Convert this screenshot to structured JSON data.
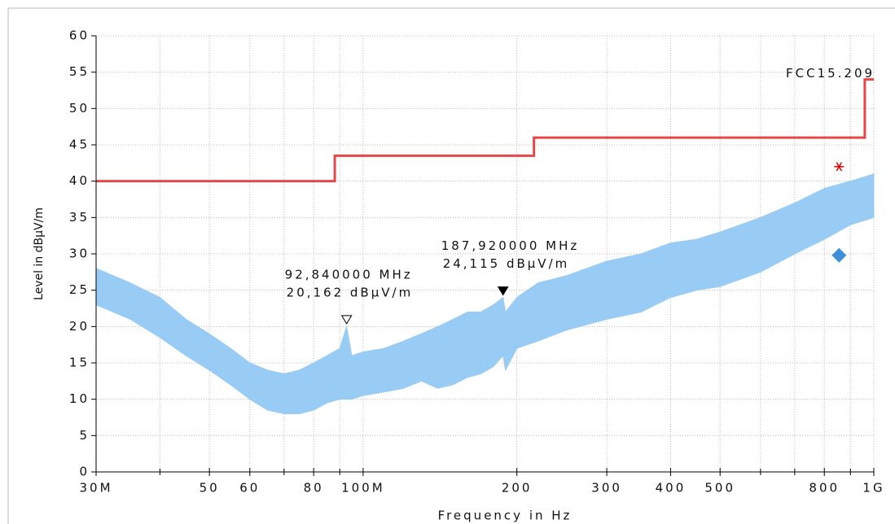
{
  "chart_data": {
    "type": "emission-scan",
    "x_label": "Frequency in Hz",
    "y_label": "Level in dBµV/m",
    "xlog": true,
    "grid": true,
    "xlim": [
      30000000,
      1000000000
    ],
    "ylim": [
      0,
      60
    ],
    "yticks": [
      0,
      5,
      10,
      15,
      20,
      25,
      30,
      35,
      40,
      45,
      50,
      55,
      60
    ],
    "xticks": [
      {
        "value": 30000000,
        "label": "30M"
      },
      {
        "value": 50000000,
        "label": "50"
      },
      {
        "value": 60000000,
        "label": "60"
      },
      {
        "value": 80000000,
        "label": "80"
      },
      {
        "value": 100000000,
        "label": "100M"
      },
      {
        "value": 200000000,
        "label": "200"
      },
      {
        "value": 300000000,
        "label": "300"
      },
      {
        "value": 400000000,
        "label": "400"
      },
      {
        "value": 500000000,
        "label": "500"
      },
      {
        "value": 800000000,
        "label": "800"
      },
      {
        "value": 1000000000,
        "label": "1G"
      }
    ],
    "xminorticks": [
      40000000,
      70000000,
      90000000,
      600000000,
      700000000,
      900000000
    ],
    "spectrum": {
      "color": "#99ccf5",
      "x": [
        30000000,
        35000000,
        40000000,
        45000000,
        50000000,
        55000000,
        60000000,
        65000000,
        70000000,
        75000000,
        80000000,
        85000000,
        90000000,
        92840000,
        95000000,
        100000000,
        110000000,
        120000000,
        130000000,
        140000000,
        150000000,
        160000000,
        170000000,
        180000000,
        187920000,
        190000000,
        200000000,
        220000000,
        250000000,
        300000000,
        350000000,
        400000000,
        450000000,
        500000000,
        600000000,
        700000000,
        800000000,
        900000000,
        1000000000
      ],
      "upper": [
        28,
        26,
        24,
        21,
        19,
        17,
        15,
        14,
        13.5,
        14,
        15,
        16,
        17,
        20,
        16,
        16.5,
        17,
        18,
        19,
        20,
        21,
        22,
        22,
        23,
        24,
        22,
        24,
        26,
        27,
        29,
        30,
        31.5,
        32,
        33,
        35,
        37,
        39,
        40,
        41
      ],
      "lower": [
        23,
        21,
        18.5,
        16,
        14,
        12,
        10,
        8.5,
        8,
        8,
        8.5,
        9.5,
        10,
        10,
        10,
        10.5,
        11,
        11.5,
        12.5,
        11.5,
        12,
        13,
        13.5,
        14.5,
        16,
        14,
        17,
        18,
        19.5,
        21,
        22,
        24,
        25,
        25.5,
        27.5,
        30,
        32,
        34,
        35
      ]
    },
    "limit": {
      "name": "FCC15.209",
      "color": "#e8474a",
      "x": [
        30000000,
        88000000,
        88000000,
        216000000,
        216000000,
        960000000,
        960000000,
        1000000000
      ],
      "values": [
        40,
        40,
        43.5,
        43.5,
        46,
        46,
        54,
        54
      ]
    },
    "markers": [
      {
        "x": 92840000,
        "y": 20.162,
        "filled": false,
        "label": [
          "92,840000 MHz",
          "20,162 dBµV/m"
        ]
      },
      {
        "x": 187920000,
        "y": 24.115,
        "filled": true,
        "label": [
          "187,920000 MHz",
          "24,115 dBµV/m"
        ]
      }
    ],
    "peak_point": {
      "x": 855000000,
      "y": 42,
      "color": "#e00000"
    },
    "qp_point": {
      "x": 855000000,
      "y": 29.8,
      "color": "#3d8fd9"
    }
  }
}
